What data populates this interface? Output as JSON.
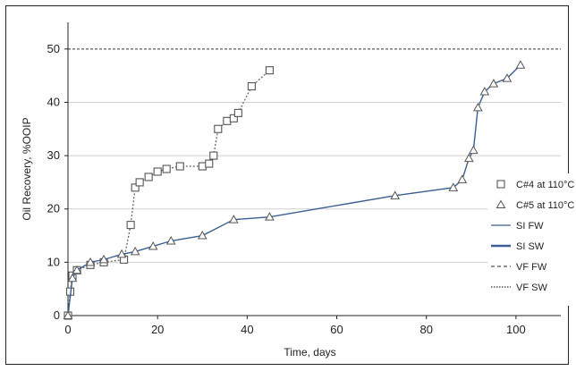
{
  "chart_data": {
    "type": "line",
    "xlabel": "Time, days",
    "ylabel": "Oil Recovery, %OOIP",
    "xlim": [
      0,
      110
    ],
    "ylim": [
      0,
      55
    ],
    "xticks": [
      0,
      20,
      40,
      60,
      80,
      100
    ],
    "yticks": [
      0,
      10,
      20,
      30,
      40,
      50
    ],
    "grid": "horizontal",
    "reference_line": 50,
    "legend_position": "bottom-right",
    "series": [
      {
        "name": "C#4 at 110°C",
        "marker": "square",
        "line": "dotted",
        "color": "#666666",
        "x": [
          0,
          0.5,
          1,
          2,
          5,
          8,
          12.5,
          14,
          15,
          16,
          18,
          20,
          22,
          25,
          30,
          31.5,
          32.5,
          33.5,
          35.5,
          37,
          38,
          41,
          45
        ],
        "y": [
          0,
          4.5,
          7.5,
          8.5,
          9.5,
          10,
          10.5,
          17,
          24,
          25,
          26,
          27,
          27.5,
          28,
          28,
          28.5,
          30,
          35,
          36.5,
          37,
          38,
          43,
          46
        ]
      },
      {
        "name": "C#5 at 110°C",
        "marker": "triangle",
        "line": "solid",
        "color": "#3a5f93",
        "x": [
          0,
          1,
          2,
          5,
          8,
          12,
          15,
          19,
          23,
          30,
          37,
          45,
          73,
          86,
          88,
          89.5,
          90.5,
          91.5,
          93,
          95,
          98,
          101
        ],
        "y": [
          0,
          7,
          8.5,
          10,
          10.5,
          11.5,
          12,
          13,
          14,
          15,
          18,
          18.5,
          22.5,
          24,
          25.5,
          29.5,
          31,
          39,
          42,
          43.5,
          44.5,
          47
        ]
      }
    ],
    "legend_entries": [
      {
        "label": "C#4 at 110°C",
        "symbol": "square"
      },
      {
        "label": "C#5 at 110°C",
        "symbol": "triangle"
      },
      {
        "label": "SI FW",
        "symbol": "solid-thin",
        "color": "#3a5f93"
      },
      {
        "label": "SI SW",
        "symbol": "solid-thick",
        "color": "#3a5f93"
      },
      {
        "label": "VF FW",
        "symbol": "dashed",
        "color": "#555555"
      },
      {
        "label": "VF SW",
        "symbol": "dotted",
        "color": "#555555"
      }
    ]
  }
}
